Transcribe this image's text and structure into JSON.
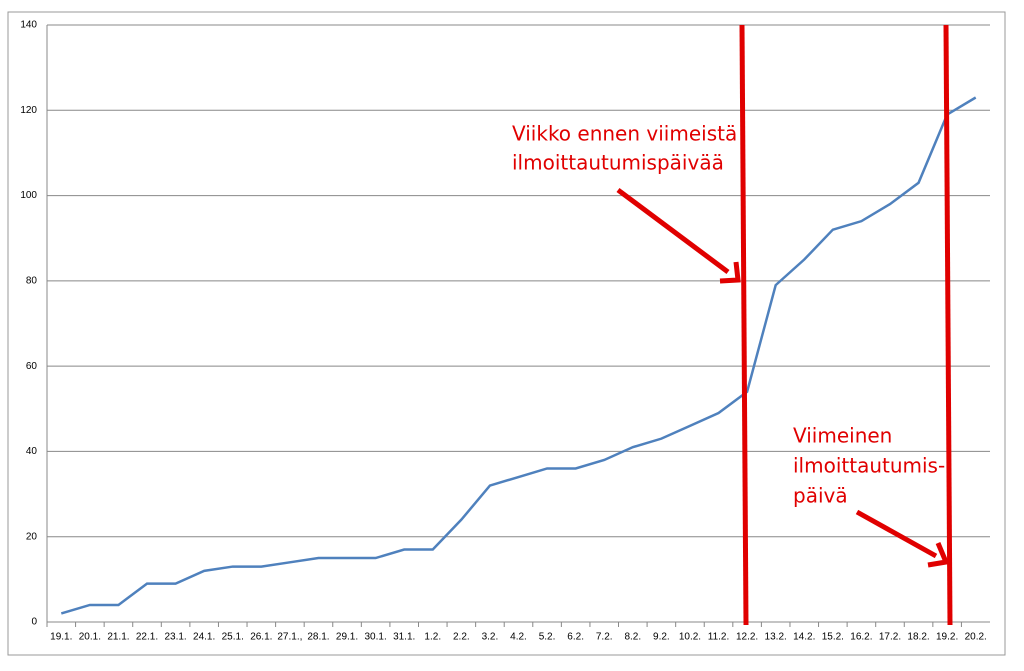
{
  "chart_data": {
    "type": "line",
    "categories": [
      "19.1.",
      "20.1.",
      "21.1.",
      "22.1.",
      "23.1.",
      "24.1.",
      "25.1.",
      "26.1.",
      "27.1.,",
      "28.1.",
      "29.1.",
      "30.1.",
      "31.1.",
      "1.2.",
      "2.2.",
      "3.2.",
      "4.2.",
      "5.2.",
      "6.2.",
      "7.2.",
      "8.2.",
      "9.2.",
      "10.2.",
      "11.2.",
      "12.2.",
      "13.2.",
      "14.2.",
      "15.2.",
      "16.2.",
      "17.2.",
      "18.2.",
      "19.2.",
      "20.2."
    ],
    "values": [
      2,
      4,
      4,
      9,
      9,
      12,
      13,
      13,
      14,
      15,
      15,
      15,
      17,
      17,
      24,
      32,
      34,
      36,
      36,
      38,
      41,
      43,
      46,
      49,
      54,
      79,
      85,
      92,
      94,
      98,
      103,
      119,
      123
    ],
    "color": "#4f81bd",
    "ylim": [
      0,
      140
    ],
    "yticks": [
      0,
      20,
      40,
      60,
      80,
      100,
      120,
      140
    ],
    "grid": true,
    "annotations": [
      {
        "lines": [
          "Viikko ennen viimeistä",
          "ilmoittautumispäivää"
        ]
      },
      {
        "lines": [
          "Viimeinen",
          "ilmoittautumis-",
          "päivä"
        ]
      }
    ]
  }
}
